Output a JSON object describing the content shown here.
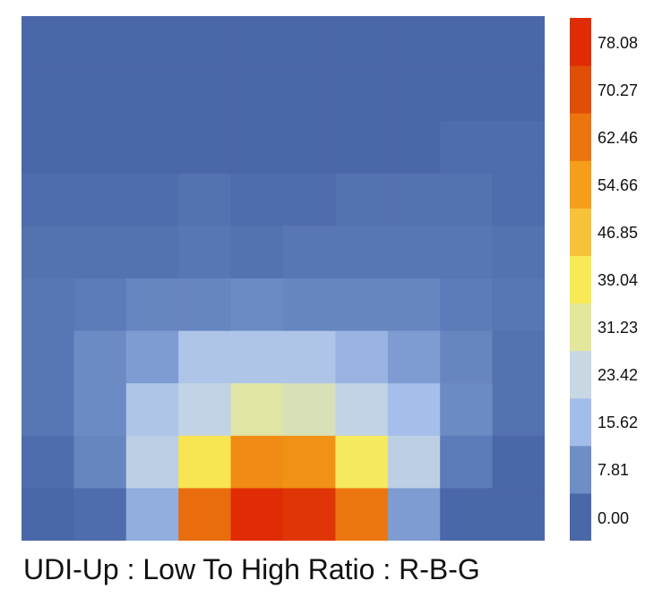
{
  "chart_data": {
    "type": "heatmap",
    "title": "UDI-Up : Low To High Ratio : R-B-G",
    "rows": 10,
    "cols": 10,
    "values": [
      [
        2,
        2,
        2,
        2,
        2,
        2,
        2,
        2,
        2,
        3
      ],
      [
        3,
        3,
        3,
        2,
        2,
        2,
        3,
        3,
        4,
        4
      ],
      [
        4,
        4,
        4,
        4,
        4,
        4,
        4,
        4,
        5,
        5
      ],
      [
        5,
        5,
        5,
        6,
        5,
        5,
        6,
        6,
        6,
        5
      ],
      [
        6,
        6,
        6,
        7,
        6,
        7,
        7,
        7,
        7,
        6
      ],
      [
        7,
        8,
        10,
        10,
        11,
        10,
        10,
        10,
        8,
        7
      ],
      [
        7,
        11,
        14,
        22,
        22,
        22,
        18,
        14,
        10,
        6
      ],
      [
        7,
        11,
        22,
        26,
        34,
        32,
        26,
        20,
        11,
        6
      ],
      [
        5,
        10,
        25,
        44,
        62,
        61,
        42,
        25,
        8,
        4
      ],
      [
        4,
        5,
        17,
        68,
        82,
        80,
        66,
        14,
        4,
        3
      ]
    ],
    "colorscale": {
      "boundaries": [
        0.0,
        7.81,
        15.62,
        23.42,
        31.23,
        39.04,
        46.85,
        54.66,
        62.46,
        70.27,
        78.08,
        85.89
      ],
      "colors": [
        "#4a67a8",
        "#6f8ec6",
        "#a3bdea",
        "#c7d7e3",
        "#e4e69a",
        "#f7ea55",
        "#f7c23a",
        "#f49e1a",
        "#ec740e",
        "#e04e07",
        "#e02c05"
      ]
    },
    "colorbar_ticks": [
      "0.00",
      "7.81",
      "15.62",
      "23.42",
      "31.23",
      "39.04",
      "46.85",
      "54.66",
      "62.46",
      "70.27",
      "78.08"
    ]
  }
}
